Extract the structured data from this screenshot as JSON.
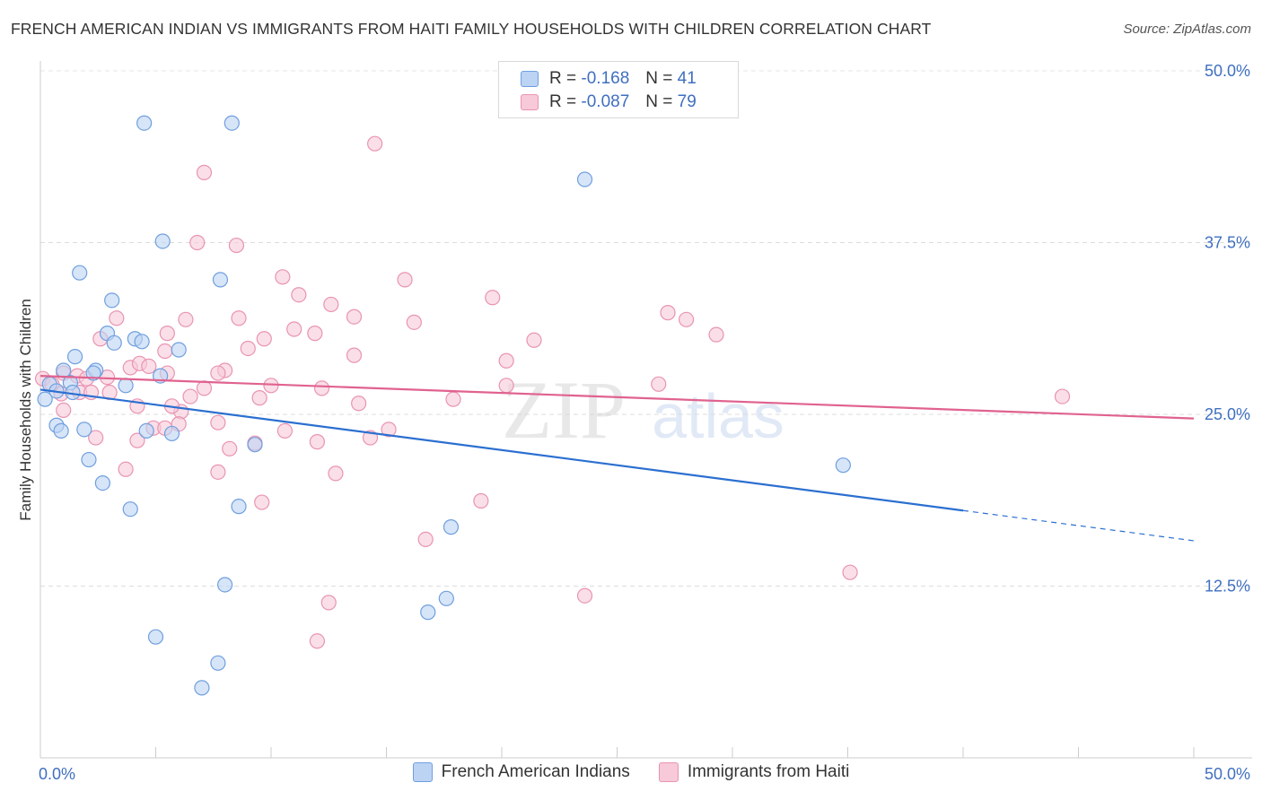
{
  "title": "FRENCH AMERICAN INDIAN VS IMMIGRANTS FROM HAITI FAMILY HOUSEHOLDS WITH CHILDREN CORRELATION CHART",
  "source": "Source: ZipAtlas.com",
  "legend": {
    "blue": {
      "r_label": "R =",
      "r_value": "-0.168",
      "n_label": "N =",
      "n_value": "41"
    },
    "pink": {
      "r_label": "R =",
      "r_value": "-0.087",
      "n_label": "N =",
      "n_value": "79"
    }
  },
  "watermark": {
    "zip": "ZIP",
    "atlas": "atlas"
  },
  "colors": {
    "blue": "#6f9fdf",
    "blue_fill": "#bcd3f3",
    "blue_line": "#2b6fd0",
    "pink": "#e994b2",
    "pink_fill": "#f7c9d9",
    "pink_line": "#e0628f",
    "tick_text": "#3f6fc0"
  },
  "chart_data": {
    "type": "scatter",
    "title": "FRENCH AMERICAN INDIAN VS IMMIGRANTS FROM HAITI FAMILY HOUSEHOLDS WITH CHILDREN CORRELATION CHART",
    "xlabel": "",
    "ylabel": "Family Households with Children",
    "xlim": [
      0,
      50
    ],
    "ylim": [
      0,
      50
    ],
    "x_tick_labels": [
      "0.0%",
      "50.0%"
    ],
    "y_ticks": [
      12.5,
      25.0,
      37.5,
      50.0
    ],
    "y_tick_labels": [
      "12.5%",
      "25.0%",
      "37.5%",
      "50.0%"
    ],
    "grid": true,
    "series": [
      {
        "name": "French American Indians",
        "color": "blue",
        "trend": {
          "x0": 0,
          "y0": 26.8,
          "x1": 40,
          "y1": 18.0,
          "dash_to_x": 50,
          "dash_to_y": 15.8
        },
        "points": [
          [
            4.5,
            46.2
          ],
          [
            8.3,
            46.2
          ],
          [
            23.6,
            42.1
          ],
          [
            5.3,
            37.6
          ],
          [
            1.7,
            35.3
          ],
          [
            7.8,
            34.8
          ],
          [
            3.1,
            33.3
          ],
          [
            2.9,
            30.9
          ],
          [
            4.1,
            30.5
          ],
          [
            3.2,
            30.2
          ],
          [
            6.0,
            29.7
          ],
          [
            1.5,
            29.2
          ],
          [
            2.4,
            28.2
          ],
          [
            1.0,
            28.2
          ],
          [
            2.3,
            28.0
          ],
          [
            5.2,
            27.8
          ],
          [
            0.4,
            27.2
          ],
          [
            1.3,
            27.3
          ],
          [
            3.7,
            27.1
          ],
          [
            0.7,
            26.7
          ],
          [
            0.2,
            26.1
          ],
          [
            1.4,
            26.6
          ],
          [
            0.7,
            24.2
          ],
          [
            1.9,
            23.9
          ],
          [
            0.9,
            23.8
          ],
          [
            4.6,
            23.8
          ],
          [
            5.7,
            23.6
          ],
          [
            9.3,
            22.8
          ],
          [
            2.1,
            21.7
          ],
          [
            34.8,
            21.3
          ],
          [
            2.7,
            20.0
          ],
          [
            8.6,
            18.3
          ],
          [
            3.9,
            18.1
          ],
          [
            17.8,
            16.8
          ],
          [
            8.0,
            12.6
          ],
          [
            17.6,
            11.6
          ],
          [
            16.8,
            10.6
          ],
          [
            5.0,
            8.8
          ],
          [
            7.7,
            6.9
          ],
          [
            7.0,
            5.1
          ],
          [
            4.4,
            30.3
          ]
        ]
      },
      {
        "name": "Immigrants from Haiti",
        "color": "pink",
        "trend": {
          "x0": 0,
          "y0": 27.8,
          "x1": 50,
          "y1": 24.7
        },
        "points": [
          [
            14.5,
            44.7
          ],
          [
            7.1,
            42.6
          ],
          [
            6.8,
            37.5
          ],
          [
            8.5,
            37.3
          ],
          [
            10.5,
            35.0
          ],
          [
            15.8,
            34.8
          ],
          [
            11.2,
            33.7
          ],
          [
            19.6,
            33.5
          ],
          [
            12.6,
            33.0
          ],
          [
            3.3,
            32.0
          ],
          [
            8.6,
            32.0
          ],
          [
            13.6,
            32.1
          ],
          [
            6.3,
            31.9
          ],
          [
            16.2,
            31.7
          ],
          [
            27.2,
            32.4
          ],
          [
            28.0,
            31.9
          ],
          [
            11.0,
            31.2
          ],
          [
            5.5,
            30.9
          ],
          [
            11.9,
            30.9
          ],
          [
            2.6,
            30.5
          ],
          [
            9.7,
            30.5
          ],
          [
            29.3,
            30.8
          ],
          [
            21.4,
            30.4
          ],
          [
            5.4,
            29.6
          ],
          [
            9.0,
            29.8
          ],
          [
            13.6,
            29.3
          ],
          [
            20.2,
            28.9
          ],
          [
            3.9,
            28.4
          ],
          [
            4.3,
            28.7
          ],
          [
            4.7,
            28.5
          ],
          [
            5.5,
            28.0
          ],
          [
            8.0,
            28.2
          ],
          [
            7.7,
            28.0
          ],
          [
            1.0,
            28.0
          ],
          [
            1.6,
            27.8
          ],
          [
            2.0,
            27.6
          ],
          [
            2.9,
            27.7
          ],
          [
            0.1,
            27.6
          ],
          [
            0.5,
            27.2
          ],
          [
            26.8,
            27.2
          ],
          [
            10.0,
            27.1
          ],
          [
            12.2,
            26.9
          ],
          [
            7.1,
            26.9
          ],
          [
            20.2,
            27.1
          ],
          [
            1.7,
            26.6
          ],
          [
            2.2,
            26.6
          ],
          [
            0.9,
            26.5
          ],
          [
            3.0,
            26.6
          ],
          [
            6.5,
            26.3
          ],
          [
            9.5,
            26.2
          ],
          [
            17.9,
            26.1
          ],
          [
            13.8,
            25.8
          ],
          [
            44.3,
            26.3
          ],
          [
            4.2,
            25.6
          ],
          [
            1.0,
            25.3
          ],
          [
            6.1,
            25.2
          ],
          [
            5.7,
            25.6
          ],
          [
            6.0,
            24.3
          ],
          [
            7.7,
            24.4
          ],
          [
            4.9,
            24.0
          ],
          [
            5.4,
            24.0
          ],
          [
            10.6,
            23.8
          ],
          [
            15.1,
            23.9
          ],
          [
            14.3,
            23.3
          ],
          [
            2.4,
            23.3
          ],
          [
            12.0,
            23.0
          ],
          [
            9.3,
            22.9
          ],
          [
            8.2,
            22.5
          ],
          [
            3.7,
            21.0
          ],
          [
            7.7,
            20.8
          ],
          [
            12.8,
            20.7
          ],
          [
            19.1,
            18.7
          ],
          [
            9.6,
            18.6
          ],
          [
            16.7,
            15.9
          ],
          [
            35.1,
            13.5
          ],
          [
            23.6,
            11.8
          ],
          [
            12.5,
            11.3
          ],
          [
            12.0,
            8.5
          ],
          [
            4.2,
            23.1
          ]
        ]
      }
    ]
  },
  "bottom_legend": [
    "French American Indians",
    "Immigrants from Haiti"
  ]
}
